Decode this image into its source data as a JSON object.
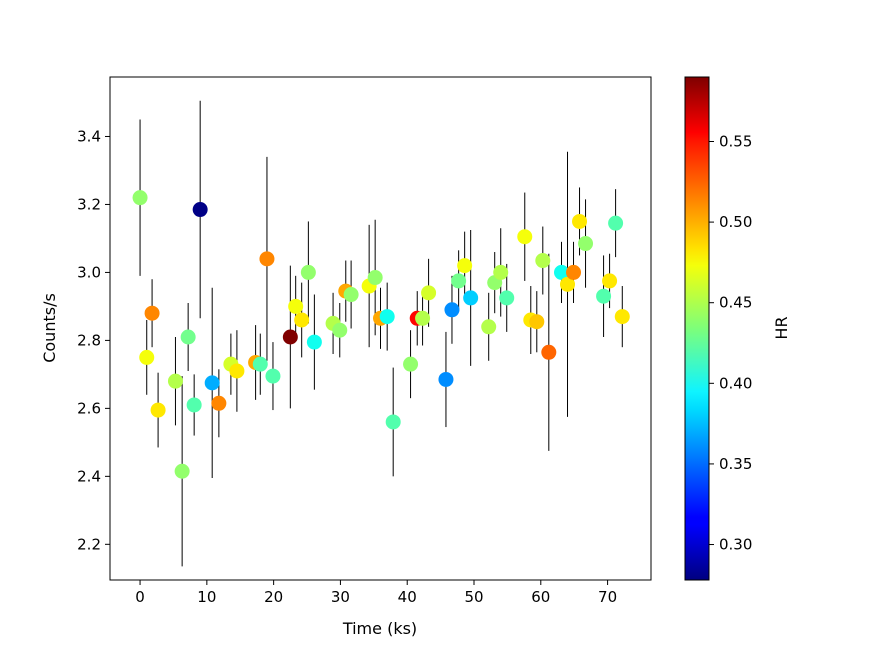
{
  "chart_data": {
    "type": "scatter",
    "xlabel": "Time (ks)",
    "ylabel": "Counts/s",
    "colorbar_label": "HR",
    "colormap": "jet",
    "xlim": [
      -4.5,
      76.5
    ],
    "ylim": [
      2.095,
      3.575
    ],
    "x_ticks": [
      0,
      10,
      20,
      30,
      40,
      50,
      60,
      70
    ],
    "y_ticks": [
      2.2,
      2.4,
      2.6,
      2.8,
      3.0,
      3.2,
      3.4
    ],
    "colorbar_range": [
      0.278,
      0.59
    ],
    "colorbar_ticks": [
      0.3,
      0.35,
      0.4,
      0.45,
      0.5,
      0.55
    ],
    "grid": false,
    "error_bar_color": "#000000",
    "points": [
      {
        "x": 0.0,
        "y": 3.22,
        "err": 0.23,
        "hr": 0.44
      },
      {
        "x": 1.0,
        "y": 2.75,
        "err": 0.11,
        "hr": 0.47
      },
      {
        "x": 1.8,
        "y": 2.88,
        "err": 0.1,
        "hr": 0.51
      },
      {
        "x": 2.7,
        "y": 2.595,
        "err": 0.11,
        "hr": 0.48
      },
      {
        "x": 5.3,
        "y": 2.68,
        "err": 0.13,
        "hr": 0.45
      },
      {
        "x": 6.3,
        "y": 2.415,
        "err": 0.28,
        "hr": 0.44
      },
      {
        "x": 7.2,
        "y": 2.81,
        "err": 0.1,
        "hr": 0.43
      },
      {
        "x": 8.1,
        "y": 2.61,
        "err": 0.09,
        "hr": 0.42
      },
      {
        "x": 9.0,
        "y": 3.185,
        "err": 0.32,
        "hr": 0.28
      },
      {
        "x": 10.8,
        "y": 2.675,
        "err": 0.28,
        "hr": 0.37
      },
      {
        "x": 11.8,
        "y": 2.615,
        "err": 0.1,
        "hr": 0.51
      },
      {
        "x": 13.6,
        "y": 2.73,
        "err": 0.09,
        "hr": 0.46
      },
      {
        "x": 14.5,
        "y": 2.71,
        "err": 0.12,
        "hr": 0.48
      },
      {
        "x": 17.3,
        "y": 2.735,
        "err": 0.11,
        "hr": 0.5
      },
      {
        "x": 18.0,
        "y": 2.73,
        "err": 0.09,
        "hr": 0.42
      },
      {
        "x": 19.0,
        "y": 3.04,
        "err": 0.3,
        "hr": 0.51
      },
      {
        "x": 19.9,
        "y": 2.695,
        "err": 0.1,
        "hr": 0.42
      },
      {
        "x": 22.5,
        "y": 2.81,
        "err": 0.21,
        "hr": 0.59
      },
      {
        "x": 23.3,
        "y": 2.9,
        "err": 0.09,
        "hr": 0.47
      },
      {
        "x": 24.2,
        "y": 2.86,
        "err": 0.11,
        "hr": 0.48
      },
      {
        "x": 25.2,
        "y": 3.0,
        "err": 0.15,
        "hr": 0.44
      },
      {
        "x": 26.1,
        "y": 2.795,
        "err": 0.14,
        "hr": 0.4
      },
      {
        "x": 28.9,
        "y": 2.85,
        "err": 0.09,
        "hr": 0.45
      },
      {
        "x": 29.9,
        "y": 2.83,
        "err": 0.08,
        "hr": 0.44
      },
      {
        "x": 30.8,
        "y": 2.945,
        "err": 0.09,
        "hr": 0.5
      },
      {
        "x": 31.6,
        "y": 2.935,
        "err": 0.1,
        "hr": 0.44
      },
      {
        "x": 34.3,
        "y": 2.96,
        "err": 0.18,
        "hr": 0.47
      },
      {
        "x": 35.2,
        "y": 2.985,
        "err": 0.17,
        "hr": 0.44
      },
      {
        "x": 36.0,
        "y": 2.865,
        "err": 0.09,
        "hr": 0.5
      },
      {
        "x": 37.0,
        "y": 2.87,
        "err": 0.1,
        "hr": 0.4
      },
      {
        "x": 37.9,
        "y": 2.56,
        "err": 0.16,
        "hr": 0.42
      },
      {
        "x": 40.5,
        "y": 2.73,
        "err": 0.1,
        "hr": 0.44
      },
      {
        "x": 41.5,
        "y": 2.865,
        "err": 0.08,
        "hr": 0.55
      },
      {
        "x": 42.3,
        "y": 2.865,
        "err": 0.08,
        "hr": 0.45
      },
      {
        "x": 43.2,
        "y": 2.94,
        "err": 0.1,
        "hr": 0.46
      },
      {
        "x": 45.8,
        "y": 2.685,
        "err": 0.14,
        "hr": 0.36
      },
      {
        "x": 46.7,
        "y": 2.89,
        "err": 0.1,
        "hr": 0.36
      },
      {
        "x": 47.7,
        "y": 2.975,
        "err": 0.09,
        "hr": 0.43
      },
      {
        "x": 48.6,
        "y": 3.02,
        "err": 0.1,
        "hr": 0.47
      },
      {
        "x": 49.5,
        "y": 2.925,
        "err": 0.2,
        "hr": 0.38
      },
      {
        "x": 52.2,
        "y": 2.84,
        "err": 0.1,
        "hr": 0.45
      },
      {
        "x": 53.1,
        "y": 2.97,
        "err": 0.09,
        "hr": 0.44
      },
      {
        "x": 54.0,
        "y": 3.0,
        "err": 0.13,
        "hr": 0.45
      },
      {
        "x": 54.9,
        "y": 2.925,
        "err": 0.1,
        "hr": 0.42
      },
      {
        "x": 57.6,
        "y": 3.105,
        "err": 0.13,
        "hr": 0.47
      },
      {
        "x": 58.5,
        "y": 2.86,
        "err": 0.1,
        "hr": 0.48
      },
      {
        "x": 59.4,
        "y": 2.855,
        "err": 0.09,
        "hr": 0.49
      },
      {
        "x": 60.3,
        "y": 3.035,
        "err": 0.1,
        "hr": 0.45
      },
      {
        "x": 61.2,
        "y": 2.765,
        "err": 0.29,
        "hr": 0.52
      },
      {
        "x": 63.1,
        "y": 3.0,
        "err": 0.09,
        "hr": 0.4
      },
      {
        "x": 64.0,
        "y": 2.965,
        "err": 0.39,
        "hr": 0.48
      },
      {
        "x": 64.9,
        "y": 3.0,
        "err": 0.09,
        "hr": 0.51
      },
      {
        "x": 65.8,
        "y": 3.15,
        "err": 0.1,
        "hr": 0.48
      },
      {
        "x": 66.7,
        "y": 3.085,
        "err": 0.13,
        "hr": 0.44
      },
      {
        "x": 69.4,
        "y": 2.93,
        "err": 0.12,
        "hr": 0.42
      },
      {
        "x": 70.3,
        "y": 2.975,
        "err": 0.08,
        "hr": 0.48
      },
      {
        "x": 71.2,
        "y": 3.145,
        "err": 0.1,
        "hr": 0.42
      },
      {
        "x": 72.2,
        "y": 2.87,
        "err": 0.09,
        "hr": 0.48
      }
    ]
  }
}
